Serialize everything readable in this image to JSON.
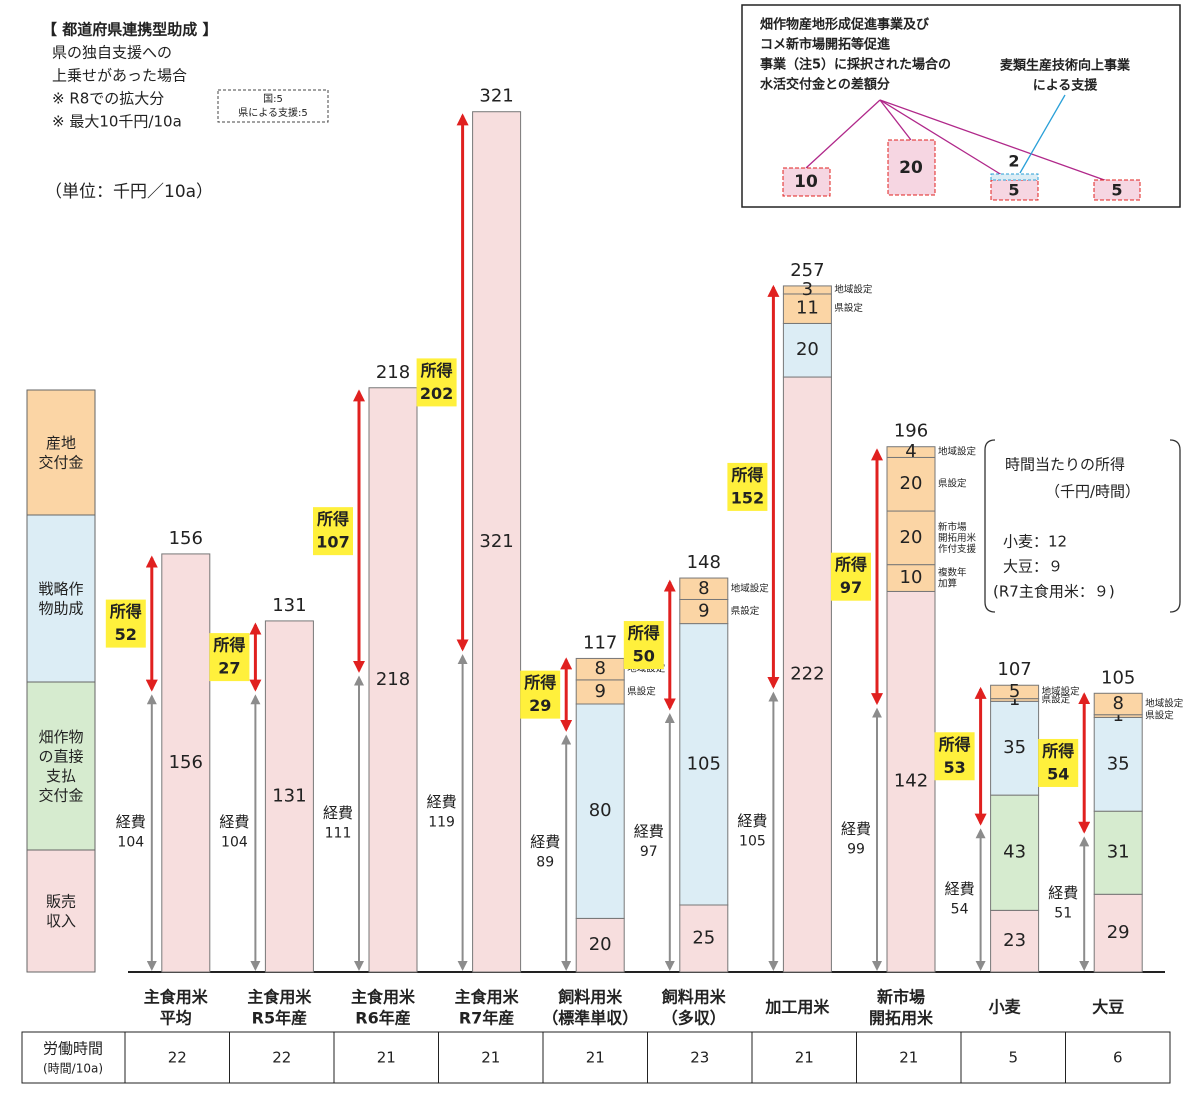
{
  "header": {
    "title": "【 都道府県連携型助成 】",
    "lines": [
      "県の独自支援への",
      "上乗せがあった場合",
      "※ R8での拡大分",
      "※ 最大10千円/10a"
    ],
    "box": [
      "国:5",
      "県による支援:5"
    ]
  },
  "unit": "（単位：千円／10a）",
  "top_note": {
    "lines": [
      "畑作物産地形成促進事業及び",
      "コメ新市場開拓等促進",
      "事業（注5）に採択された場合の",
      "水活交付金との差額分"
    ],
    "wheat_lines": [
      "麦類生産技術向上事業",
      "による支援"
    ],
    "amounts": [
      10,
      20,
      5,
      5
    ],
    "wheat_amount": 2
  },
  "chart_data": {
    "type": "bar",
    "stacked": true,
    "categories": [
      "主食用米\n平均",
      "主食用米\nR5年産",
      "主食用米\nR6年産",
      "主食用米\nR7年産",
      "飼料用米\n（標準単収）",
      "飼料用米\n（多収）",
      "加工用米",
      "新市場\n開拓用米",
      "小麦",
      "大豆"
    ],
    "legend": [
      {
        "label": "産地\n交付金",
        "color": "#fbd5a5"
      },
      {
        "label": "戦略作\n物助成",
        "color": "#dcedf5"
      },
      {
        "label": "畑作物\nの直接\n支払\n交付金",
        "color": "#d6ebcf"
      },
      {
        "label": "販売\n収入",
        "color": "#f7dede"
      }
    ],
    "series": [
      {
        "color": "#f7dede",
        "values": [
          156,
          131,
          218,
          321,
          20,
          25,
          222,
          142,
          23,
          29
        ]
      },
      {
        "color": "#d6ebcf",
        "values": [
          null,
          null,
          null,
          null,
          null,
          null,
          null,
          null,
          43,
          31
        ]
      },
      {
        "color": "#dcedf5",
        "values": [
          null,
          null,
          null,
          null,
          80,
          105,
          20,
          null,
          35,
          35
        ]
      },
      {
        "name": "複数年\n加算",
        "color": "#fbd5a5",
        "values": [
          null,
          null,
          null,
          null,
          null,
          null,
          null,
          10,
          null,
          null
        ]
      },
      {
        "name": "新市場\n開拓用米\n作付支援",
        "color": "#fbd5a5",
        "values": [
          null,
          null,
          null,
          null,
          null,
          null,
          null,
          20,
          null,
          null
        ]
      },
      {
        "name": "県設定",
        "color": "#fbd5a5",
        "values": [
          null,
          null,
          null,
          null,
          9,
          9,
          11,
          20,
          1,
          1
        ]
      },
      {
        "name": "地域設定",
        "color": "#fbd5a5",
        "values": [
          null,
          null,
          null,
          null,
          8,
          8,
          3,
          4,
          5,
          8
        ]
      }
    ],
    "totals": [
      156,
      131,
      218,
      321,
      117,
      148,
      257,
      196,
      107,
      105
    ],
    "income": {
      "label": "所得",
      "color": "#e0201f",
      "values": [
        52,
        27,
        107,
        202,
        29,
        50,
        152,
        97,
        53,
        54
      ]
    },
    "cost": {
      "label": "経費",
      "color": "#8c8c8c",
      "values": [
        104,
        104,
        111,
        119,
        89,
        97,
        105,
        99,
        54,
        51
      ]
    }
  },
  "hourly_income": {
    "title": "時間当たりの所得",
    "unit": "（千円/時間）",
    "lines": [
      "小麦：12",
      "大豆：９",
      "(R7主食用米：９)"
    ]
  },
  "labor": {
    "label": "労働時間",
    "unit": "(時間/10a)",
    "values": [
      22,
      22,
      21,
      21,
      21,
      23,
      21,
      21,
      5,
      6
    ]
  }
}
